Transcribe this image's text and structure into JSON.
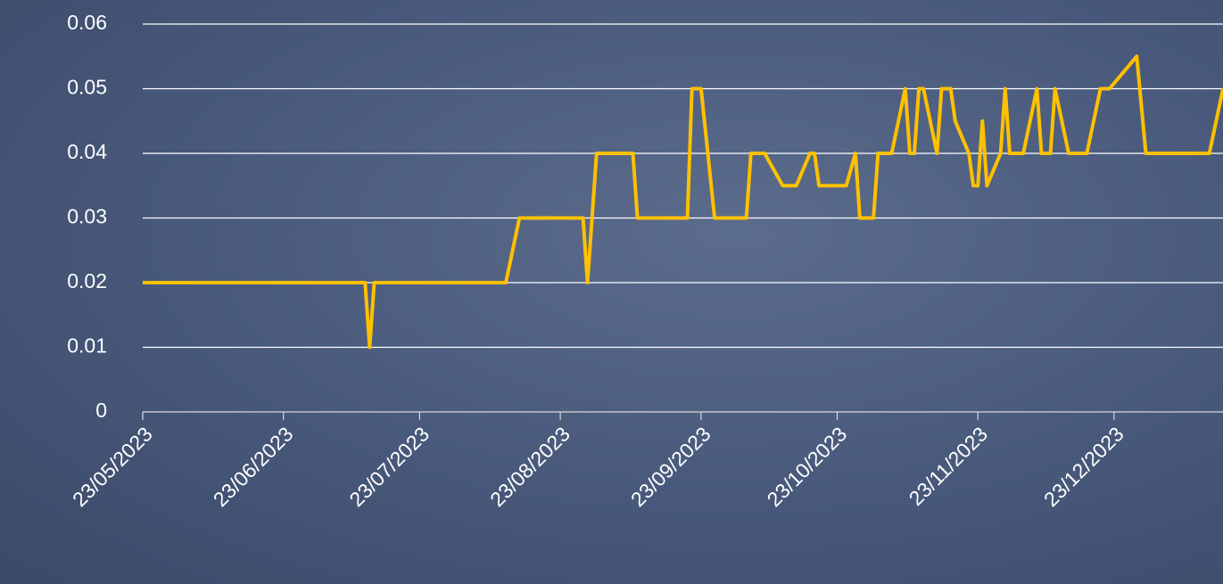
{
  "chart_data": {
    "type": "line",
    "x": [
      "2023-05-23",
      "2023-07-11",
      "2023-07-12",
      "2023-07-13",
      "2023-08-11",
      "2023-08-14",
      "2023-08-28",
      "2023-08-29",
      "2023-08-31",
      "2023-09-08",
      "2023-09-09",
      "2023-09-20",
      "2023-09-21",
      "2023-09-23",
      "2023-09-26",
      "2023-10-03",
      "2023-10-04",
      "2023-10-07",
      "2023-10-11",
      "2023-10-14",
      "2023-10-17",
      "2023-10-18",
      "2023-10-19",
      "2023-10-25",
      "2023-10-27",
      "2023-10-28",
      "2023-10-31",
      "2023-11-01",
      "2023-11-04",
      "2023-11-07",
      "2023-11-08",
      "2023-11-09",
      "2023-11-10",
      "2023-11-11",
      "2023-11-14",
      "2023-11-15",
      "2023-11-17",
      "2023-11-18",
      "2023-11-21",
      "2023-11-22",
      "2023-11-23",
      "2023-11-24",
      "2023-11-25",
      "2023-11-28",
      "2023-11-29",
      "2023-11-30",
      "2023-12-03",
      "2023-12-06",
      "2023-12-07",
      "2023-12-09",
      "2023-12-10",
      "2023-12-13",
      "2023-12-17",
      "2023-12-20",
      "2023-12-22",
      "2023-12-28",
      "2023-12-30",
      "2024-01-13",
      "2024-01-16"
    ],
    "series": [
      {
        "color": "#ffc000",
        "values": [
          0.02,
          0.02,
          0.01,
          0.02,
          0.02,
          0.03,
          0.03,
          0.02,
          0.04,
          0.04,
          0.03,
          0.03,
          0.05,
          0.05,
          0.03,
          0.03,
          0.04,
          0.04,
          0.035,
          0.035,
          0.04,
          0.04,
          0.035,
          0.035,
          0.04,
          0.03,
          0.03,
          0.04,
          0.04,
          0.05,
          0.04,
          0.04,
          0.05,
          0.05,
          0.04,
          0.05,
          0.05,
          0.045,
          0.04,
          0.035,
          0.035,
          0.045,
          0.035,
          0.04,
          0.05,
          0.04,
          0.04,
          0.05,
          0.04,
          0.04,
          0.05,
          0.04,
          0.04,
          0.05,
          0.05,
          0.055,
          0.04,
          0.04,
          0.05
        ]
      }
    ],
    "xlim": [
      "2023-05-23",
      "2024-01-16"
    ],
    "xticks": [
      {
        "value": "2023-05-23",
        "label": "23/05/2023"
      },
      {
        "value": "2023-06-23",
        "label": "23/06/2023"
      },
      {
        "value": "2023-07-23",
        "label": "23/07/2023"
      },
      {
        "value": "2023-08-23",
        "label": "23/08/2023"
      },
      {
        "value": "2023-09-23",
        "label": "23/09/2023"
      },
      {
        "value": "2023-10-23",
        "label": "23/10/2023"
      },
      {
        "value": "2023-11-23",
        "label": "23/11/2023"
      },
      {
        "value": "2023-12-23",
        "label": "23/12/2023"
      }
    ],
    "ylim": [
      0,
      0.06
    ],
    "yticks": [
      0,
      0.01,
      0.02,
      0.03,
      0.04,
      0.05,
      0.06
    ],
    "grid": true
  }
}
